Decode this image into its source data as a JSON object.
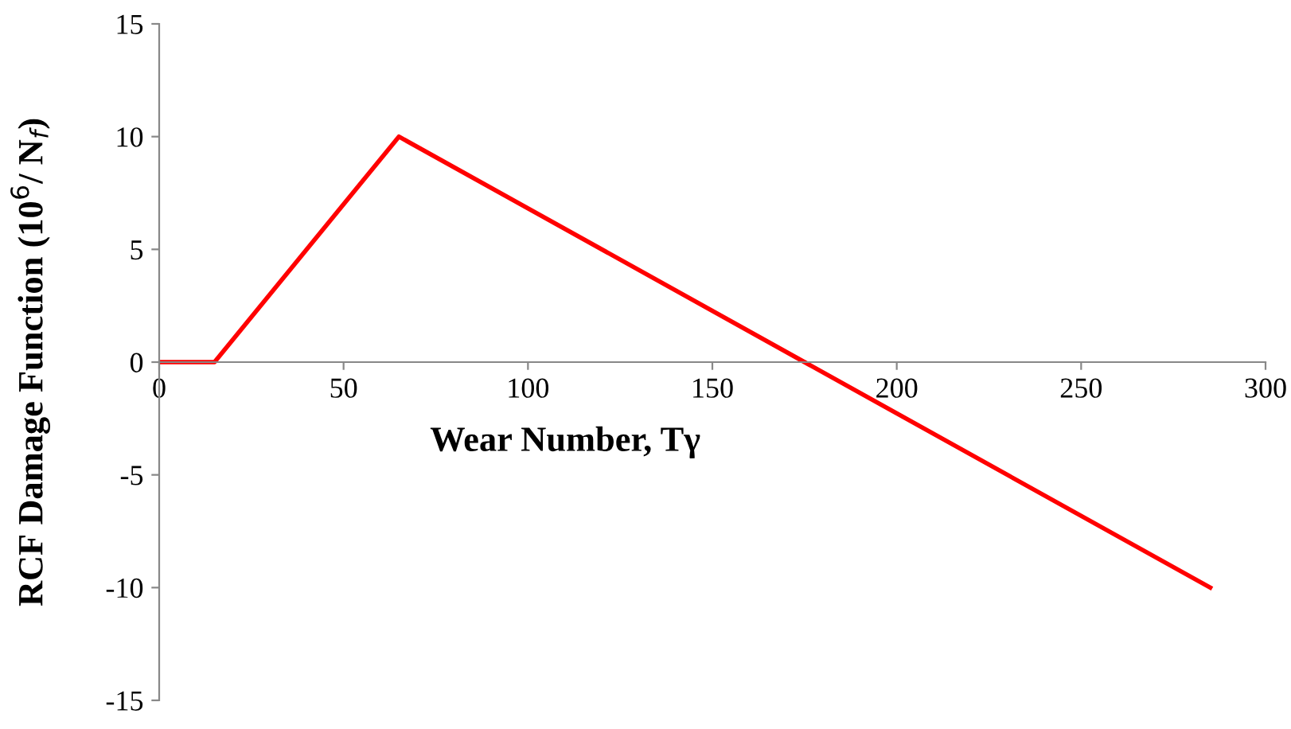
{
  "chart_data": {
    "type": "line",
    "xlabel": "Wear Number, Tγ",
    "ylabel": "RCF Damage Function (10$^{6}$/ N$_{f}$)",
    "x": [
      0,
      15,
      65,
      285
    ],
    "series": [
      {
        "color": "#ff0000",
        "values": [
          0,
          0,
          10,
          -10
        ]
      }
    ],
    "xlim": [
      0,
      300
    ],
    "xticks": [
      0,
      50,
      100,
      150,
      200,
      250,
      300
    ],
    "ylim": [
      -15,
      15
    ],
    "yticks": [
      -15,
      -10,
      -5,
      0,
      5,
      10,
      15
    ],
    "grid": false,
    "legend": false,
    "marker": "none",
    "line_style": "solid"
  }
}
